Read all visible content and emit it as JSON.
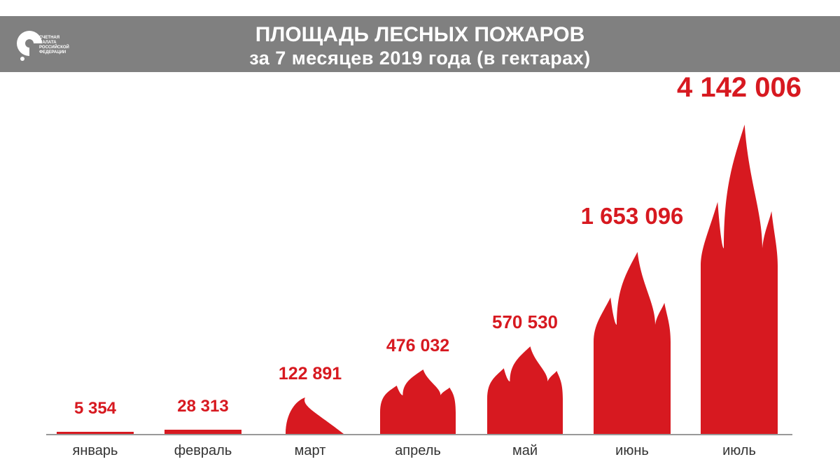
{
  "header": {
    "title": "ПЛОЩАДЬ ЛЕСНЫХ ПОЖАРОВ",
    "subtitle": "за 7 месяцев 2019 года (в гектарах)",
    "logo_text": "СЧЕТНАЯ ПАЛАТА РОССИЙСКОЙ ФЕДЕРАЦИИ"
  },
  "colors": {
    "flame": "#d71920",
    "header_bg": "#808080",
    "axis": "#333333"
  },
  "chart_data": {
    "type": "bar",
    "title": "ПЛОЩАДЬ ЛЕСНЫХ ПОЖАРОВ за 7 месяцев 2019 года (в гектарах)",
    "xlabel": "",
    "ylabel": "",
    "categories": [
      "январь",
      "февраль",
      "март",
      "апрель",
      "май",
      "июнь",
      "июль"
    ],
    "values": [
      5354,
      28313,
      122891,
      476032,
      570530,
      1653096,
      4142006
    ],
    "value_labels": [
      "5 354",
      "28 313",
      "122 891",
      "476 032",
      "570 530",
      "1 653 096",
      "4 142 006"
    ],
    "grid": false,
    "legend": "none"
  }
}
